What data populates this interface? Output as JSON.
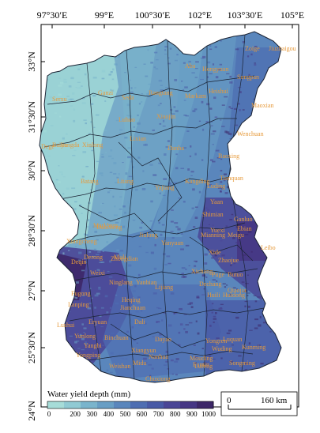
{
  "map": {
    "top_longitudes": [
      "97°30′E",
      "99°E",
      "100°30′E",
      "102°E",
      "103°30′E",
      "105°E"
    ],
    "left_latitudes": [
      "33°N",
      "31°30′N",
      "30°N",
      "28°30′N",
      "27°N",
      "25°30′N",
      "24°N"
    ],
    "counties": [
      "Zoige",
      "Aba",
      "Hongyuan",
      "Songpan",
      "Jiuzhaigou",
      "Serxu",
      "Ganzi",
      "Seda",
      "Rangtang",
      "Markam",
      "Heishui",
      "Maoxian",
      "Xiaojin",
      "Baiyu",
      "Luhuo",
      "Danba",
      "Wenchuan",
      "Dege",
      "Xinlong",
      "Lixian",
      "Jiangda",
      "Batang",
      "Litang",
      "Yajiang",
      "Kangding",
      "Luding",
      "Baoxing",
      "Tianquan",
      "Yaan",
      "Markham",
      "Daocheng",
      "Xiangcheng",
      "Jiulong",
      "Shimian",
      "Ebian",
      "Ganluo",
      "Derong",
      "Muli",
      "Yanyuan",
      "Mianning",
      "Yuexi",
      "Leibo",
      "Meigu",
      "Zhaojue",
      "Xide",
      "Deqin",
      "Zhongdian",
      "Weixi",
      "Xichang",
      "Puge",
      "Butuo",
      "Ninglang",
      "Yanbian",
      "Lijiang",
      "Dechang",
      "Huili",
      "Huidong",
      "Qiaojia",
      "Fugong",
      "Lanping",
      "Heqing",
      "Jianchuan",
      "Lushui",
      "Yunlong",
      "Eryuan",
      "Dali",
      "Binchuan",
      "Dayao",
      "Yongren",
      "Wuding",
      "Luquan",
      "Yangbi",
      "Yongping",
      "Xiangyun",
      "Nanhua",
      "Mouding",
      "Lufeng",
      "Chuxiong",
      "Fumin",
      "Kunming",
      "Songming",
      "Weishan",
      "Midu"
    ],
    "legend": {
      "title": "Water yield depth (mm)",
      "ticks": [
        "0",
        "200",
        "300",
        "400",
        "500",
        "600",
        "700",
        "800",
        "900",
        "1000"
      ],
      "colors": [
        "#a6dcd8",
        "#90cad3",
        "#7ab4cc",
        "#689ec4",
        "#5a86bc",
        "#4e6eb2",
        "#485aa6",
        "#4a4696",
        "#463684",
        "#3d2768"
      ]
    },
    "scale_bar": {
      "start": "0",
      "end": "160 km"
    }
  }
}
